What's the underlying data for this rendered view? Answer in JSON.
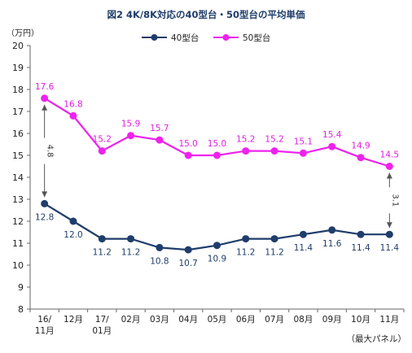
{
  "title": "図2 4K/8K対応の40型台・50型台の平均単価",
  "y_unit": "（万円）",
  "note": "（最大パネル）",
  "legend": [
    {
      "name": "40型台",
      "color": "#1f3d6b"
    },
    {
      "name": "50型台",
      "color": "#ee22ee"
    }
  ],
  "annotations": [
    {
      "id": "gap-start",
      "text": "4.8"
    },
    {
      "id": "gap-end",
      "text": "3.1"
    }
  ],
  "chart_data": {
    "type": "line",
    "title": "図2 4K/8K対応の40型台・50型台の平均単価",
    "ylabel": "（万円）",
    "xlabel": "",
    "ylim": [
      8,
      20
    ],
    "yticks": [
      8,
      9,
      10,
      11,
      12,
      13,
      14,
      15,
      16,
      17,
      18,
      19,
      20
    ],
    "categories": [
      [
        "16/",
        "11月"
      ],
      [
        "12月"
      ],
      [
        "17/",
        "01月"
      ],
      [
        "02月"
      ],
      [
        "03月"
      ],
      [
        "04月"
      ],
      [
        "05月"
      ],
      [
        "06月"
      ],
      [
        "07月"
      ],
      [
        "08月"
      ],
      [
        "09月"
      ],
      [
        "10月"
      ],
      [
        "11月"
      ]
    ],
    "series": [
      {
        "name": "40型台",
        "color": "#1f3d6b",
        "values": [
          12.8,
          12.0,
          11.2,
          11.2,
          10.8,
          10.7,
          10.9,
          11.2,
          11.2,
          11.4,
          11.6,
          11.4,
          11.4
        ],
        "labels": [
          "12.8",
          "12.0",
          "11.2",
          "11.2",
          "10.8",
          "10.7",
          "10.9",
          "11.2",
          "11.2",
          "11.4",
          "11.6",
          "11.4",
          "11.4"
        ]
      },
      {
        "name": "50型台",
        "color": "#ee22ee",
        "values": [
          17.6,
          16.8,
          15.2,
          15.9,
          15.7,
          15.0,
          15.0,
          15.2,
          15.2,
          15.1,
          15.4,
          14.9,
          14.5
        ],
        "labels": [
          "17.6",
          "16.8",
          "15.2",
          "15.9",
          "15.7",
          "15.0",
          "15.0",
          "15.2",
          "15.2",
          "15.1",
          "15.4",
          "14.9",
          "14.5"
        ]
      }
    ],
    "grid": false,
    "legend_position": "top-center"
  }
}
